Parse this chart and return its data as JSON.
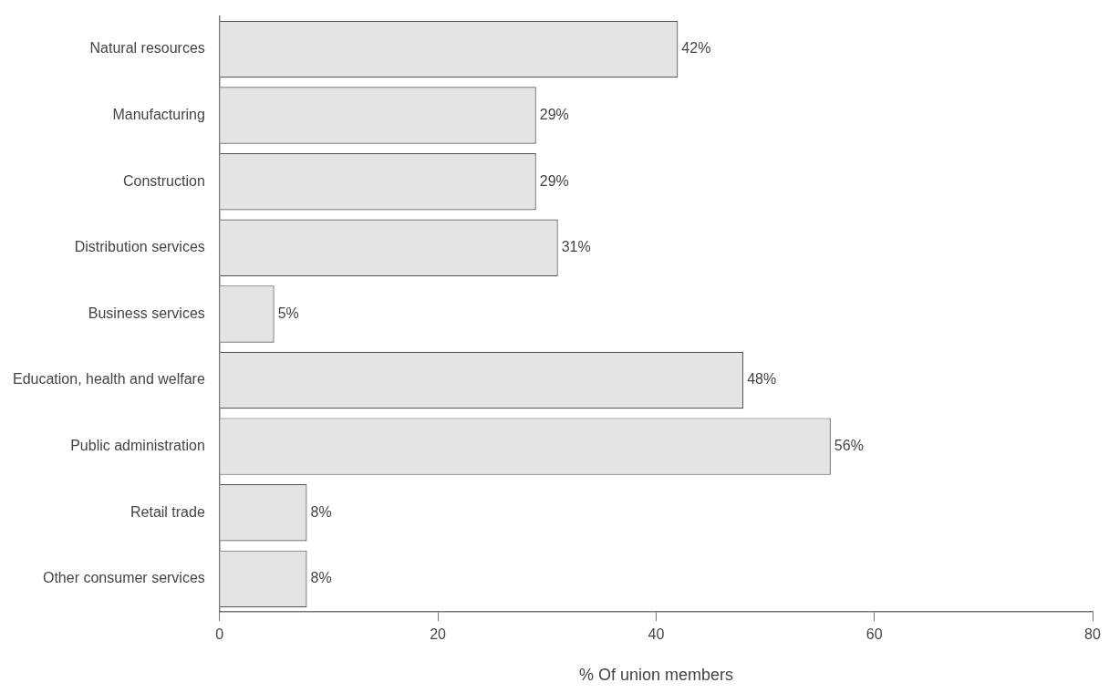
{
  "chart_data": {
    "type": "bar",
    "orientation": "horizontal",
    "xlabel": "% Of union members",
    "categories": [
      "Natural resources",
      "Manufacturing",
      "Construction",
      "Distribution services",
      "Business services",
      "Education, health and welfare",
      "Public administration",
      "Retail trade",
      "Other consumer services"
    ],
    "values": [
      42,
      29,
      29,
      31,
      5,
      48,
      56,
      8,
      8
    ],
    "value_labels": [
      "42%",
      "29%",
      "29%",
      "31%",
      "5%",
      "48%",
      "56%",
      "8%",
      "8%"
    ],
    "color": "#e4e4e4",
    "xlim": [
      0,
      80
    ],
    "xticks": [
      0,
      20,
      40,
      60,
      80
    ],
    "grid": false,
    "legend": false
  }
}
